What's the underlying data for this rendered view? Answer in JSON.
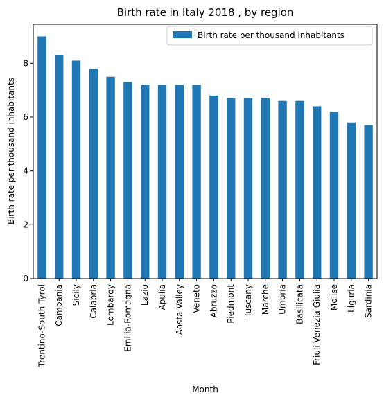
{
  "chart_data": {
    "type": "bar",
    "title": "Birth rate in Italy 2018 , by region",
    "xlabel": "Month",
    "ylabel": "Birth rate per thousand inhabitants",
    "ylim": [
      0,
      9.45
    ],
    "yticks": [
      0,
      2,
      4,
      6,
      8
    ],
    "grid": false,
    "legend_position": "top-right",
    "categories": [
      "Trentino-South Tyrol",
      "Campania",
      "Sicily",
      "Calabria",
      "Lombardy",
      "Emilia-Romagna",
      "Lazio",
      "Apulia",
      "Aosta Valley",
      "Veneto",
      "Abruzzo",
      "Piedmont",
      "Tuscany",
      "Marche",
      "Umbria",
      "Basilicata",
      "Friuli-Venezia Giulia",
      "Molise",
      "Liguria",
      "Sardinia"
    ],
    "series": [
      {
        "name": "Birth rate per thousand inhabitants",
        "color": "#1f77b4",
        "values": [
          9.0,
          8.3,
          8.1,
          7.8,
          7.5,
          7.3,
          7.2,
          7.2,
          7.2,
          7.2,
          6.8,
          6.7,
          6.7,
          6.7,
          6.6,
          6.6,
          6.4,
          6.2,
          5.8,
          5.7
        ]
      }
    ]
  }
}
